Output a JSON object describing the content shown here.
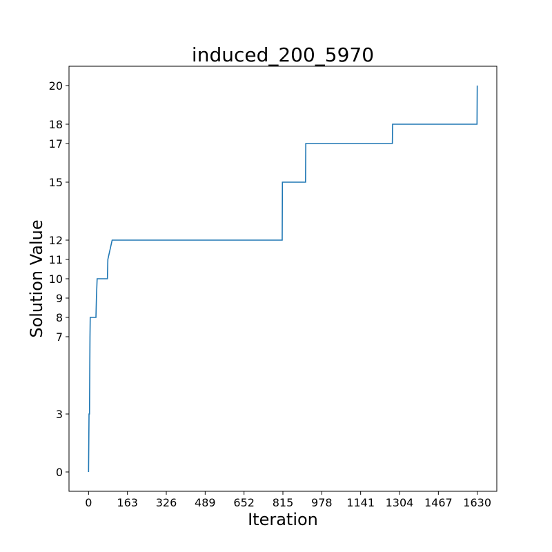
{
  "chart_data": {
    "type": "line",
    "title": "induced_200_5970",
    "xlabel": "Iteration",
    "ylabel": "Solution Value",
    "xlim": [
      -82,
      1712
    ],
    "ylim": [
      -1,
      21
    ],
    "x_ticks": [
      0,
      163,
      326,
      489,
      652,
      815,
      978,
      1141,
      1304,
      1467,
      1630
    ],
    "x_tick_labels": [
      "0",
      "163",
      "326",
      "489",
      "652",
      "815",
      "978",
      "1141",
      "1304",
      "1467",
      "1630"
    ],
    "y_ticks": [
      0,
      3,
      7,
      8,
      9,
      10,
      11,
      12,
      15,
      17,
      18,
      20
    ],
    "y_tick_labels": [
      "0",
      "3",
      "7",
      "8",
      "9",
      "10",
      "11",
      "12",
      "15",
      "17",
      "18",
      "20"
    ],
    "grid": false,
    "line_color": "#1f77b4",
    "series": [
      {
        "x": [
          0,
          2,
          4,
          6,
          7,
          31,
          33,
          36,
          79,
          81,
          99,
          812,
          813,
          910,
          911,
          1274,
          1275,
          1629,
          1630
        ],
        "y": [
          0,
          3,
          3,
          7,
          8,
          8,
          9,
          10,
          10,
          11,
          12,
          12,
          15,
          15,
          17,
          17,
          18,
          18,
          20
        ]
      }
    ]
  }
}
